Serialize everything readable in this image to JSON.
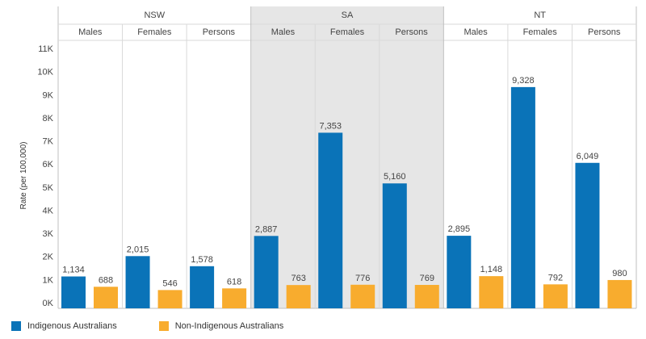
{
  "chart_data": {
    "type": "bar",
    "ylabel": "Rate (per 100,000)",
    "ylim": [
      0,
      11000
    ],
    "yticks": [
      {
        "value": 0,
        "label": "0K"
      },
      {
        "value": 1000,
        "label": "1K"
      },
      {
        "value": 2000,
        "label": "2K"
      },
      {
        "value": 3000,
        "label": "3K"
      },
      {
        "value": 4000,
        "label": "4K"
      },
      {
        "value": 5000,
        "label": "5K"
      },
      {
        "value": 6000,
        "label": "6K"
      },
      {
        "value": 7000,
        "label": "7K"
      },
      {
        "value": 8000,
        "label": "8K"
      },
      {
        "value": 9000,
        "label": "9K"
      },
      {
        "value": 10000,
        "label": "10K"
      },
      {
        "value": 11000,
        "label": "11K"
      }
    ],
    "groups": [
      {
        "name": "NSW",
        "shaded": false,
        "subgroups": [
          {
            "name": "Males",
            "values": [
              1134,
              688
            ],
            "labels": [
              "1,134",
              "688"
            ]
          },
          {
            "name": "Females",
            "values": [
              2015,
              546
            ],
            "labels": [
              "2,015",
              "546"
            ]
          },
          {
            "name": "Persons",
            "values": [
              1578,
              618
            ],
            "labels": [
              "1,578",
              "618"
            ]
          }
        ]
      },
      {
        "name": "SA",
        "shaded": true,
        "subgroups": [
          {
            "name": "Males",
            "values": [
              2887,
              763
            ],
            "labels": [
              "2,887",
              "763"
            ]
          },
          {
            "name": "Females",
            "values": [
              7353,
              776
            ],
            "labels": [
              "7,353",
              "776"
            ]
          },
          {
            "name": "Persons",
            "values": [
              5160,
              769
            ],
            "labels": [
              "5,160",
              "769"
            ]
          }
        ]
      },
      {
        "name": "NT",
        "shaded": false,
        "subgroups": [
          {
            "name": "Males",
            "values": [
              2895,
              1148
            ],
            "labels": [
              "2,895",
              "1,148"
            ]
          },
          {
            "name": "Females",
            "values": [
              9328,
              792
            ],
            "labels": [
              "9,328",
              "792"
            ]
          },
          {
            "name": "Persons",
            "values": [
              6049,
              980
            ],
            "labels": [
              "6,049",
              "980"
            ]
          }
        ]
      }
    ],
    "series": [
      {
        "name": "Indigenous Australians",
        "color": "#0a73b8"
      },
      {
        "name": "Non-Indigenous Australians",
        "color": "#f8ac2e"
      }
    ],
    "colors": {
      "grid": "#d9d9d9",
      "shade": "#e6e6e6",
      "text": "#444444"
    }
  }
}
